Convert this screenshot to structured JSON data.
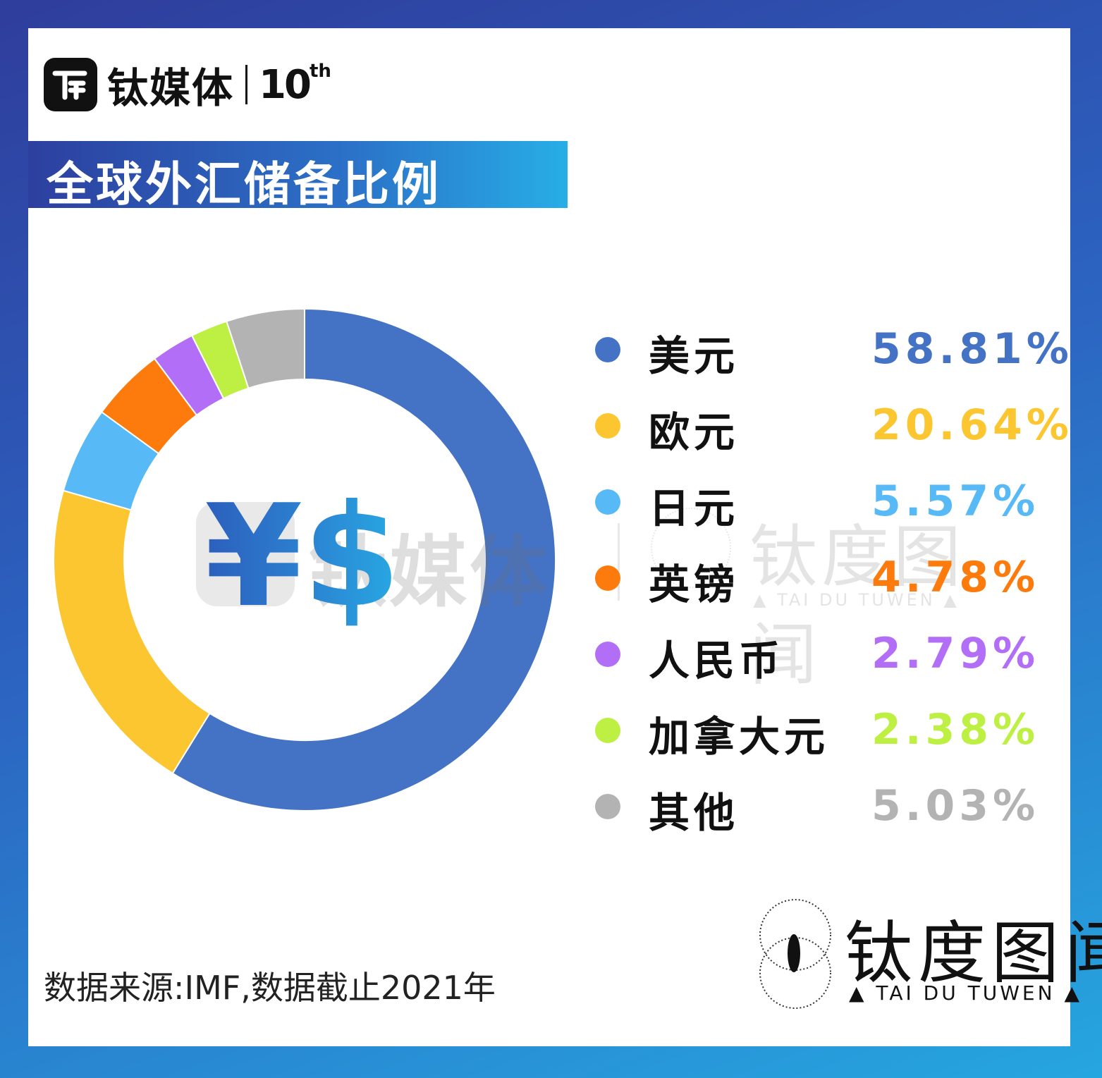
{
  "header": {
    "logo_name": "钛媒体",
    "anniversary_num": "10",
    "anniversary_suffix": "th"
  },
  "banner": {
    "title": "全球外汇储备比例"
  },
  "symbols": "¥$",
  "watermark": {
    "left_name": "钛媒体",
    "right_name": "钛度图闻",
    "right_sub": "▲ TAI DU TUWEN ▲"
  },
  "chart_data": {
    "type": "pie",
    "donut": true,
    "title": "全球外汇储备比例",
    "unit": "%",
    "categories": [
      "美元",
      "欧元",
      "日元",
      "英镑",
      "人民币",
      "加拿大元",
      "其他"
    ],
    "values": [
      58.81,
      20.64,
      5.57,
      4.78,
      2.79,
      2.38,
      5.03
    ],
    "value_labels": [
      "58.81%",
      "20.64%",
      "5.57%",
      "4.78%",
      "2.79%",
      "2.38%",
      "5.03%"
    ],
    "colors": [
      "#4472c4",
      "#fcc630",
      "#57b9f5",
      "#fd7b0c",
      "#b26ef7",
      "#bdf043",
      "#b3b3b3"
    ],
    "legend_position": "right"
  },
  "footer": {
    "source": "数据来源:IMF,数据截止2021年",
    "brand_name": "钛度图闻",
    "brand_sub": "▲ TAI DU TUWEN ▲"
  }
}
